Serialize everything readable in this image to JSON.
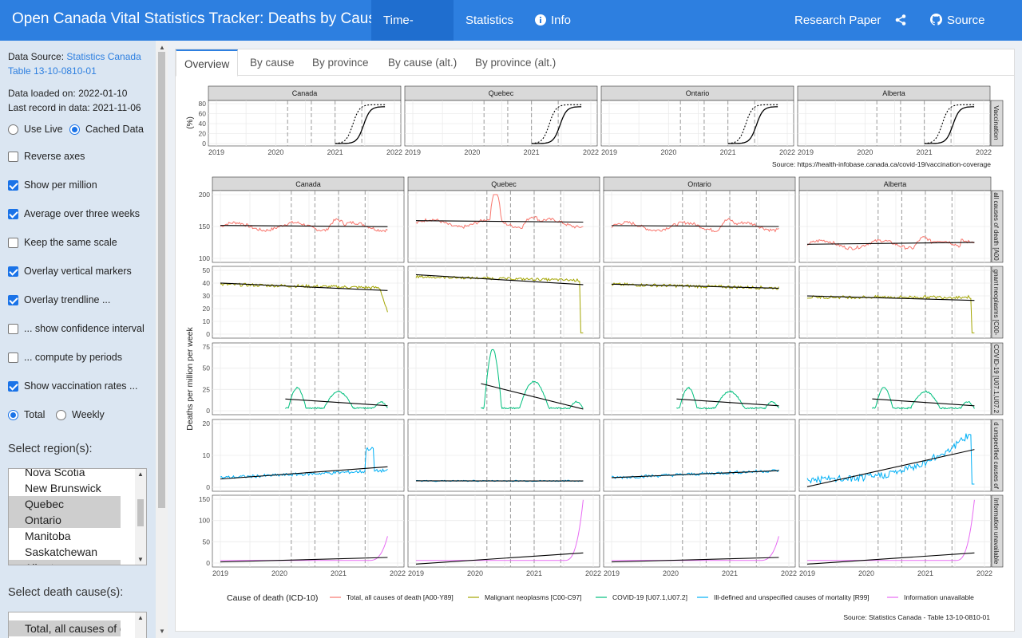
{
  "navbar": {
    "title": "Open Canada Vital Statistics Tracker: Deaths by Cause",
    "tabs": [
      "Time-series",
      "Statistics",
      "Info"
    ],
    "research": "Research Paper",
    "source": "Source Code"
  },
  "sidebar": {
    "data_source_prefix": "Data Source: ",
    "data_source_link": "Statistics Canada Table 13-10-0810-01",
    "loaded": "Data loaded on: 2022-01-10",
    "last_record": "Last record in data: 2021-11-06",
    "use_live": "Use Live",
    "cached": "Cached Data",
    "options": [
      {
        "label": "Reverse axes",
        "checked": false
      },
      {
        "label": "Show per million",
        "checked": true
      },
      {
        "label": "Average over three weeks",
        "checked": true
      },
      {
        "label": "Keep the same scale",
        "checked": false
      },
      {
        "label": "Overlay vertical markers",
        "checked": true
      },
      {
        "label": "Overlay trendline ...",
        "checked": true
      },
      {
        "label": "... show confidence interval",
        "checked": false
      },
      {
        "label": "... compute by periods",
        "checked": false
      },
      {
        "label": "Show vaccination rates ...",
        "checked": true
      }
    ],
    "total": "Total",
    "weekly": "Weekly",
    "region_label": "Select region(s):",
    "regions": [
      "Nova Scotia",
      "New Brunswick",
      "Quebec",
      "Ontario",
      "Manitoba",
      "Saskatchewan",
      "Alberta"
    ],
    "regions_selected": [
      false,
      false,
      true,
      true,
      false,
      false,
      true
    ],
    "cause_label": "Select death cause(s):",
    "causes": [
      "Total, all causes of death"
    ]
  },
  "tabs": [
    "Overview",
    "By cause",
    "By province",
    "By cause (alt.)",
    "By province (alt.)"
  ],
  "chart_data": {
    "type": "line",
    "provinces": [
      "Canada",
      "Quebec",
      "Ontario",
      "Alberta"
    ],
    "vaccination": {
      "strip_label": "Vaccination",
      "ylabel": "(%)",
      "yticks": [
        "0",
        "20",
        "40",
        "60",
        "80"
      ],
      "source": "Source: https://health-infobase.canada.ca/covid-19/vaccination-coverage"
    },
    "xticks": [
      "2019",
      "2020",
      "2021",
      "2022"
    ],
    "ylabel": "Deaths per million per week",
    "rows": [
      {
        "strip": "all causes of death [A00",
        "yticks": [
          "100",
          "150",
          "200"
        ],
        "color": "#f8766d"
      },
      {
        "strip": "gnant neoplasms [C00-",
        "yticks": [
          "0",
          "10",
          "20",
          "30",
          "40",
          "50"
        ],
        "color": "#a3a500"
      },
      {
        "strip": "COVID-19 [U07.1,U07.2",
        "yticks": [
          "0",
          "25",
          "50",
          "75"
        ],
        "color": "#00bf7d"
      },
      {
        "strip": "d unspecified causes of",
        "yticks": [
          "0",
          "10",
          "20"
        ],
        "color": "#00b0f6"
      },
      {
        "strip": "Information unavailable",
        "yticks": [
          "0",
          "50",
          "100",
          "150"
        ],
        "color": "#e76bf3"
      }
    ],
    "legend_title": "Cause of death (ICD-10)",
    "legend": [
      "Total, all causes of death [A00-Y89]",
      "Malignant neoplasms [C00-C97]",
      "COVID-19 [U07.1,U07.2]",
      "Ill-defined and unspecified causes of mortality [R99]",
      "Information unavailable"
    ],
    "source": "Source: Statistics Canada - Table 13-10-0810-01"
  }
}
